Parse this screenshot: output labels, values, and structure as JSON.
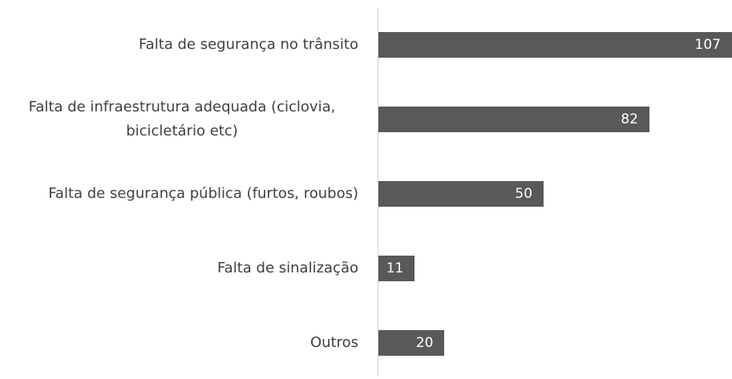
{
  "chart_data": {
    "type": "bar",
    "orientation": "horizontal",
    "categories": [
      "Falta de segurança no trânsito",
      "Falta de infraestrutura adequada (ciclovia, bicicletário etc)",
      "Falta de segurança pública (furtos, roubos)",
      "Falta de sinalização",
      "Outros"
    ],
    "values": [
      107,
      82,
      50,
      11,
      20
    ],
    "color": "#595959"
  }
}
